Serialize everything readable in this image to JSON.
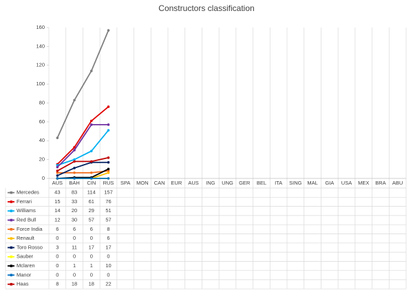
{
  "chart_data": {
    "type": "line",
    "title": "Constructors classification",
    "categories": [
      "AUS",
      "BAH",
      "CIN",
      "RUS",
      "SPA",
      "MON",
      "CAN",
      "EUR",
      "AUS",
      "ING",
      "UNG",
      "GER",
      "BEL",
      "ITA",
      "SING",
      "MAL",
      "GIA",
      "USA",
      "MEX",
      "BRA",
      "ABU"
    ],
    "ylim": [
      0,
      160
    ],
    "yticks": [
      0,
      20,
      40,
      60,
      80,
      100,
      120,
      140,
      160
    ],
    "series": [
      {
        "name": "Mercedes",
        "color": "#7f7f7f",
        "values": [
          43,
          83,
          114,
          157,
          null,
          null,
          null,
          null,
          null,
          null,
          null,
          null,
          null,
          null,
          null,
          null,
          null,
          null,
          null,
          null,
          null
        ]
      },
      {
        "name": "Ferrari",
        "color": "#e00000",
        "values": [
          15,
          33,
          61,
          76,
          null,
          null,
          null,
          null,
          null,
          null,
          null,
          null,
          null,
          null,
          null,
          null,
          null,
          null,
          null,
          null,
          null
        ]
      },
      {
        "name": "Williams",
        "color": "#00b0f0",
        "values": [
          14,
          20,
          29,
          51,
          null,
          null,
          null,
          null,
          null,
          null,
          null,
          null,
          null,
          null,
          null,
          null,
          null,
          null,
          null,
          null,
          null
        ]
      },
      {
        "name": "Red Bull",
        "color": "#7030a0",
        "values": [
          12,
          30,
          57,
          57,
          null,
          null,
          null,
          null,
          null,
          null,
          null,
          null,
          null,
          null,
          null,
          null,
          null,
          null,
          null,
          null,
          null
        ]
      },
      {
        "name": "Force India",
        "color": "#f07020",
        "values": [
          6,
          6,
          6,
          8,
          null,
          null,
          null,
          null,
          null,
          null,
          null,
          null,
          null,
          null,
          null,
          null,
          null,
          null,
          null,
          null,
          null
        ]
      },
      {
        "name": "Renault",
        "color": "#ffc000",
        "values": [
          0,
          0,
          0,
          6,
          null,
          null,
          null,
          null,
          null,
          null,
          null,
          null,
          null,
          null,
          null,
          null,
          null,
          null,
          null,
          null,
          null
        ]
      },
      {
        "name": "Toro Rosso",
        "color": "#002060",
        "values": [
          3,
          11,
          17,
          17,
          null,
          null,
          null,
          null,
          null,
          null,
          null,
          null,
          null,
          null,
          null,
          null,
          null,
          null,
          null,
          null,
          null
        ]
      },
      {
        "name": "Sauber",
        "color": "#ffff00",
        "values": [
          0,
          0,
          0,
          0,
          null,
          null,
          null,
          null,
          null,
          null,
          null,
          null,
          null,
          null,
          null,
          null,
          null,
          null,
          null,
          null,
          null
        ]
      },
      {
        "name": "Mclaren",
        "color": "#000000",
        "values": [
          0,
          1,
          1,
          10,
          null,
          null,
          null,
          null,
          null,
          null,
          null,
          null,
          null,
          null,
          null,
          null,
          null,
          null,
          null,
          null,
          null
        ]
      },
      {
        "name": "Manor",
        "color": "#0070c0",
        "values": [
          0,
          0,
          0,
          0,
          null,
          null,
          null,
          null,
          null,
          null,
          null,
          null,
          null,
          null,
          null,
          null,
          null,
          null,
          null,
          null,
          null
        ]
      },
      {
        "name": "Haas",
        "color": "#c00000",
        "values": [
          8,
          18,
          18,
          22,
          null,
          null,
          null,
          null,
          null,
          null,
          null,
          null,
          null,
          null,
          null,
          null,
          null,
          null,
          null,
          null,
          null
        ]
      }
    ]
  }
}
